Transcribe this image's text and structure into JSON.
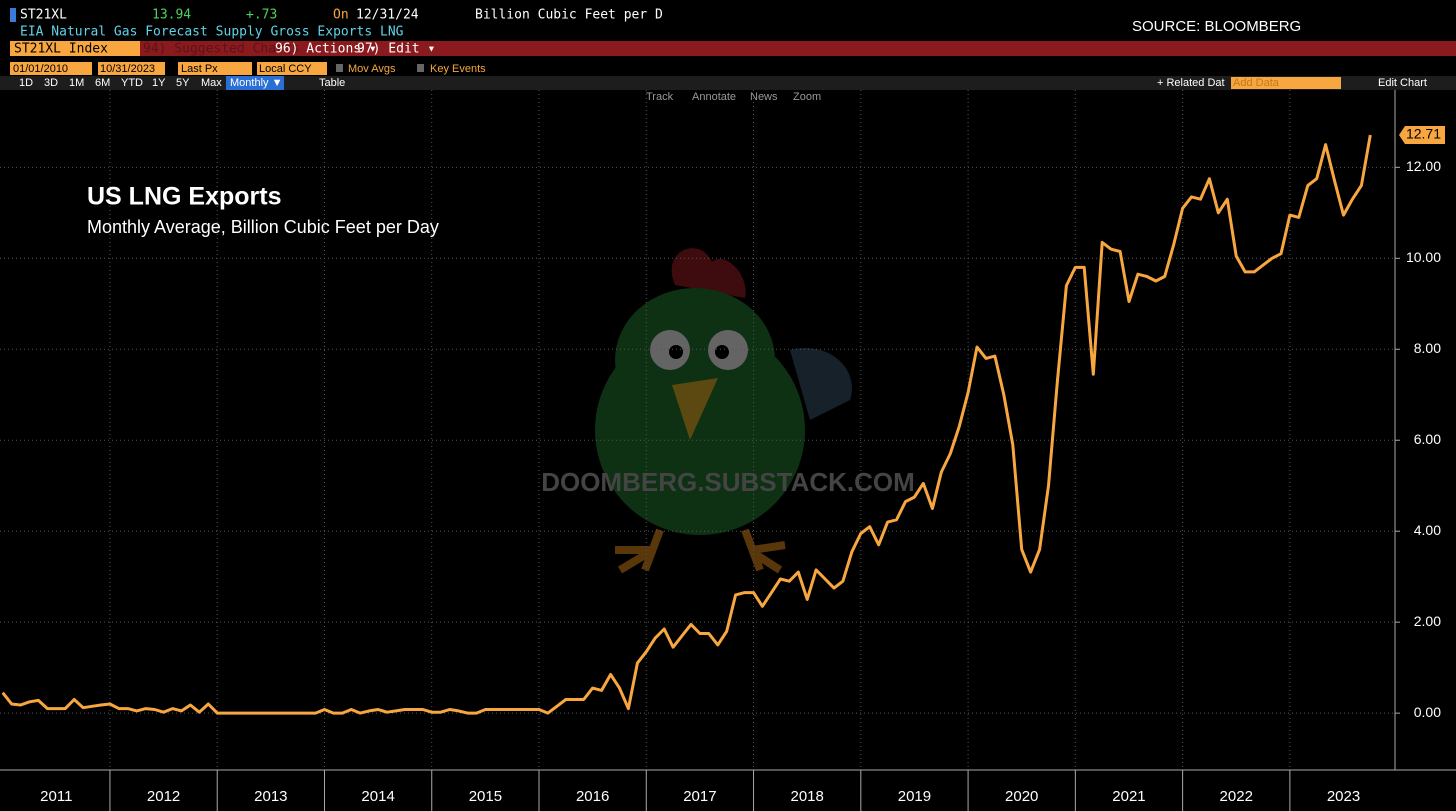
{
  "ui": {
    "ticker": "ST21XL",
    "last": "13.94",
    "change": "+.73",
    "on": "On",
    "date": "12/31/24",
    "units": "Billion Cubic Feet per D",
    "description": "EIA Natural Gas Forecast Supply Gross Exports LNG",
    "source": "SOURCE: BLOOMBERG",
    "security": "ST21XL Index",
    "menu": [
      "94) Suggested Charts",
      "96) Actions ▾",
      "97) Edit ▾"
    ],
    "start_date": "01/01/2010",
    "end_date": "10/31/2023",
    "field": "Last Px",
    "currency": "Local CCY",
    "options": [
      "Mov Avgs",
      "Key Events"
    ],
    "ranges": [
      "1D",
      "3D",
      "1M",
      "6M",
      "YTD",
      "1Y",
      "5Y",
      "Max"
    ],
    "period": "Monthly ▼",
    "table": "Table",
    "related": "+ Related Dat",
    "add_data": "Add Data",
    "edit_chart": "Edit Chart",
    "tools": [
      "Track",
      "Annotate",
      "News",
      "Zoom"
    ],
    "watermark": "DOOMBERG.SUBSTACK.COM"
  },
  "chart_data": {
    "type": "line",
    "title": "US LNG Exports",
    "subtitle": "Monthly Average, Billion Cubic Feet per Day",
    "x": [
      2011.0,
      2011.083,
      2011.167,
      2011.25,
      2011.333,
      2011.417,
      2011.5,
      2011.583,
      2011.667,
      2011.75,
      2011.833,
      2011.917,
      2012.0,
      2012.083,
      2012.167,
      2012.25,
      2012.333,
      2012.417,
      2012.5,
      2012.583,
      2012.667,
      2012.75,
      2012.833,
      2012.917,
      2013.0,
      2013.083,
      2013.167,
      2013.25,
      2013.333,
      2013.417,
      2013.5,
      2013.583,
      2013.667,
      2013.75,
      2013.833,
      2013.917,
      2014.0,
      2014.083,
      2014.167,
      2014.25,
      2014.333,
      2014.417,
      2014.5,
      2014.583,
      2014.667,
      2014.75,
      2014.833,
      2014.917,
      2015.0,
      2015.083,
      2015.167,
      2015.25,
      2015.333,
      2015.417,
      2015.5,
      2015.583,
      2015.667,
      2015.75,
      2015.833,
      2015.917,
      2016.0,
      2016.083,
      2016.167,
      2016.25,
      2016.333,
      2016.417,
      2016.5,
      2016.583,
      2016.667,
      2016.75,
      2016.833,
      2016.917,
      2017.0,
      2017.083,
      2017.167,
      2017.25,
      2017.333,
      2017.417,
      2017.5,
      2017.583,
      2017.667,
      2017.75,
      2017.833,
      2017.917,
      2018.0,
      2018.083,
      2018.167,
      2018.25,
      2018.333,
      2018.417,
      2018.5,
      2018.583,
      2018.667,
      2018.75,
      2018.833,
      2018.917,
      2019.0,
      2019.083,
      2019.167,
      2019.25,
      2019.333,
      2019.417,
      2019.5,
      2019.583,
      2019.667,
      2019.75,
      2019.833,
      2019.917,
      2020.0,
      2020.083,
      2020.167,
      2020.25,
      2020.333,
      2020.417,
      2020.5,
      2020.583,
      2020.667,
      2020.75,
      2020.833,
      2020.917,
      2021.0,
      2021.083,
      2021.167,
      2021.25,
      2021.333,
      2021.417,
      2021.5,
      2021.583,
      2021.667,
      2021.75,
      2021.833,
      2021.917,
      2022.0,
      2022.083,
      2022.167,
      2022.25,
      2022.333,
      2022.417,
      2022.5,
      2022.583,
      2022.667,
      2022.75,
      2022.833,
      2022.917,
      2023.0,
      2023.083,
      2023.167,
      2023.25,
      2023.333,
      2023.417,
      2023.5,
      2023.583,
      2023.667,
      2023.75
    ],
    "series": [
      {
        "name": "ST21XL Index",
        "color": "#f7a640",
        "values": [
          0.45,
          0.2,
          0.18,
          0.25,
          0.28,
          0.1,
          0.1,
          0.1,
          0.3,
          0.12,
          0.15,
          0.18,
          0.2,
          0.1,
          0.1,
          0.05,
          0.1,
          0.08,
          0.02,
          0.1,
          0.05,
          0.18,
          0.02,
          0.2,
          0,
          0,
          0,
          0,
          0,
          0,
          0,
          0,
          0,
          0,
          0,
          0,
          0.08,
          0,
          0,
          0.08,
          0,
          0.05,
          0.08,
          0.02,
          0.05,
          0.08,
          0.08,
          0.08,
          0.02,
          0.02,
          0.08,
          0.05,
          0,
          0,
          0.08,
          0.08,
          0.08,
          0.08,
          0.08,
          0.08,
          0.08,
          0,
          0.15,
          0.3,
          0.3,
          0.3,
          0.55,
          0.5,
          0.85,
          0.55,
          0.1,
          1.1,
          1.35,
          1.65,
          1.85,
          1.45,
          1.7,
          1.95,
          1.75,
          1.75,
          1.5,
          1.8,
          2.6,
          2.65,
          2.65,
          2.35,
          2.65,
          2.95,
          2.9,
          3.1,
          2.5,
          3.15,
          2.95,
          2.75,
          2.9,
          3.55,
          3.95,
          4.1,
          3.7,
          4.2,
          4.25,
          4.65,
          4.75,
          5.05,
          4.5,
          5.3,
          5.7,
          6.3,
          7.05,
          8.05,
          7.8,
          7.85,
          7.0,
          5.9,
          3.6,
          3.1,
          3.6,
          5.0,
          7.3,
          9.4,
          9.8,
          9.8,
          7.45,
          10.35,
          10.2,
          10.15,
          9.05,
          9.65,
          9.6,
          9.5,
          9.6,
          10.3,
          11.1,
          11.35,
          11.3,
          11.75,
          11.0,
          11.3,
          10.05,
          9.7,
          9.7,
          9.85,
          10.0,
          10.1,
          10.95,
          10.9,
          11.6,
          11.75,
          12.5,
          11.7,
          10.95,
          11.3,
          11.6,
          12.71
        ]
      }
    ],
    "xlim": [
      2010.975,
      2023.98
    ],
    "xticks": [
      {
        "value": 2011.5,
        "label": "2011"
      },
      {
        "value": 2012.5,
        "label": "2012"
      },
      {
        "value": 2013.5,
        "label": "2013"
      },
      {
        "value": 2014.5,
        "label": "2014"
      },
      {
        "value": 2015.5,
        "label": "2015"
      },
      {
        "value": 2016.5,
        "label": "2016"
      },
      {
        "value": 2017.5,
        "label": "2017"
      },
      {
        "value": 2018.5,
        "label": "2018"
      },
      {
        "value": 2019.5,
        "label": "2019"
      },
      {
        "value": 2020.5,
        "label": "2020"
      },
      {
        "value": 2021.5,
        "label": "2021"
      },
      {
        "value": 2022.5,
        "label": "2022"
      },
      {
        "value": 2023.5,
        "label": "2023"
      }
    ],
    "ylim": [
      -1.25,
      13.7
    ],
    "yticks": [
      {
        "value": 0,
        "label": "0.00"
      },
      {
        "value": 2,
        "label": "2.00"
      },
      {
        "value": 4,
        "label": "4.00"
      },
      {
        "value": 6,
        "label": "6.00"
      },
      {
        "value": 8,
        "label": "8.00"
      },
      {
        "value": 10,
        "label": "10.00"
      },
      {
        "value": 12,
        "label": "12.00"
      }
    ],
    "grid": true
  }
}
